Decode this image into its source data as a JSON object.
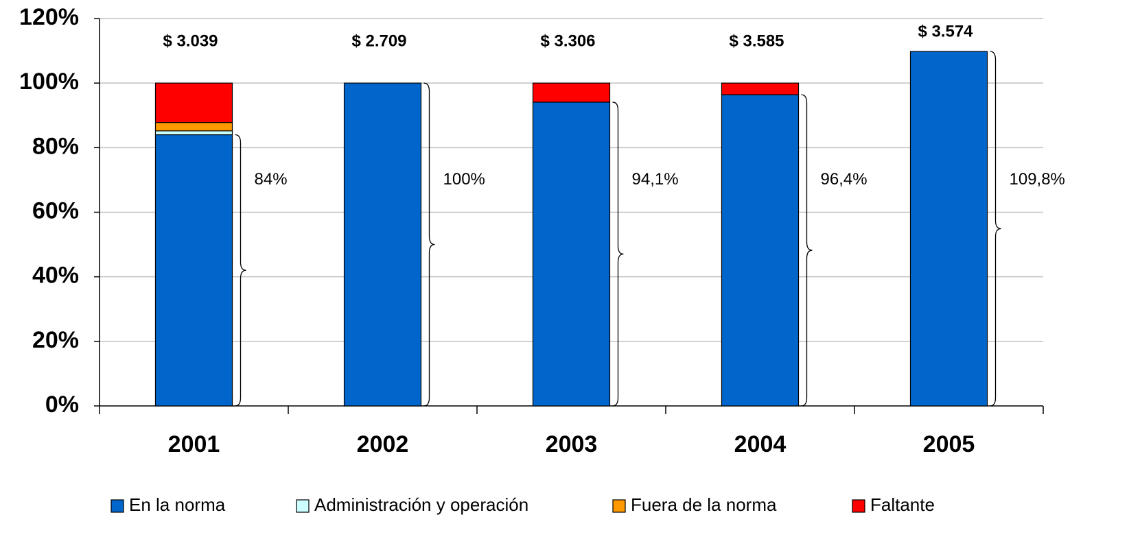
{
  "chart_data": {
    "type": "stacked_bar",
    "categories": [
      "2001",
      "2002",
      "2003",
      "2004",
      "2005"
    ],
    "series": [
      {
        "name": "En la norma",
        "color": "#0066cc",
        "values": [
          84,
          100,
          94.1,
          96.4,
          109.8
        ],
        "value_labels": [
          "84%",
          "100%",
          "94,1%",
          "96,4%",
          "109,8%"
        ]
      },
      {
        "name": "Administración y operación",
        "color": "#ccffff",
        "values": [
          1.2,
          0,
          0,
          0,
          0
        ]
      },
      {
        "name": "Fuera de la norma",
        "color": "#ff9900",
        "values": [
          2.6,
          0,
          0,
          0,
          0
        ]
      },
      {
        "name": "Faltante",
        "color": "#ff0000",
        "values": [
          12.2,
          0,
          5.9,
          3.6,
          0
        ]
      }
    ],
    "annotations": [
      "$ 3.039",
      "$ 2.709",
      "$ 3.306",
      "$ 3.585",
      "$ 3.574"
    ],
    "ylim": [
      0,
      120
    ],
    "yticks": [
      {
        "value": 0,
        "label": "0%"
      },
      {
        "value": 20,
        "label": "20%"
      },
      {
        "value": 40,
        "label": "40%"
      },
      {
        "value": 60,
        "label": "60%"
      },
      {
        "value": 80,
        "label": "80%"
      },
      {
        "value": 100,
        "label": "100%"
      },
      {
        "value": 120,
        "label": "120%"
      }
    ],
    "grid": true,
    "legend": "bottom"
  }
}
